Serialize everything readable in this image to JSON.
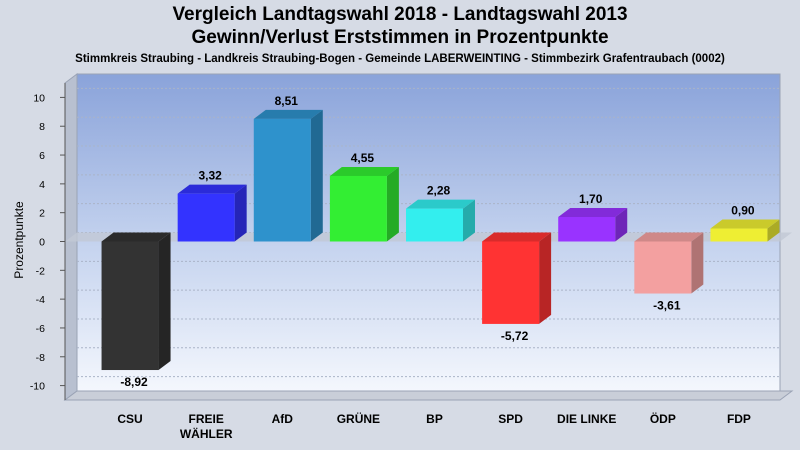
{
  "chart_data": {
    "type": "bar",
    "title": "Vergleich Landtagswahl 2018 - Landtagswahl 2013",
    "subtitle": "Gewinn/Verlust Erststimmen in Prozentpunkte",
    "caption": "Stimmkreis Straubing - Landkreis Straubing-Bogen - Gemeinde LABERWEINTING - Stimmbezirk Grafentraubach (0002)",
    "xlabel": "",
    "ylabel": "Prozentpunkte",
    "ylim": [
      -11,
      11
    ],
    "yticks": [
      10,
      8,
      6,
      4,
      2,
      0,
      -2,
      -4,
      -6,
      -8,
      -10
    ],
    "grid": true,
    "legend": "none",
    "categories": [
      "CSU",
      "FREIE WÄHLER",
      "AfD",
      "GRÜNE",
      "BP",
      "SPD",
      "DIE LINKE",
      "ÖDP",
      "FDP"
    ],
    "category_lines": [
      [
        "CSU"
      ],
      [
        "FREIE",
        "WÄHLER"
      ],
      [
        "AfD"
      ],
      [
        "GRÜNE"
      ],
      [
        "BP"
      ],
      [
        "SPD"
      ],
      [
        "DIE LINKE"
      ],
      [
        "ÖDP"
      ],
      [
        "FDP"
      ]
    ],
    "values": [
      -8.92,
      3.32,
      8.51,
      4.55,
      2.28,
      -5.72,
      1.7,
      -3.61,
      0.9
    ],
    "value_labels": [
      "-8,92",
      "3,32",
      "8,51",
      "4,55",
      "2,28",
      "-5,72",
      "1,70",
      "-3,61",
      "0,90"
    ],
    "colors": [
      "#333333",
      "#3333ff",
      "#2e92cc",
      "#33ee33",
      "#33eeee",
      "#ff3333",
      "#9933ff",
      "#f3a0a0",
      "#eeee33"
    ]
  }
}
